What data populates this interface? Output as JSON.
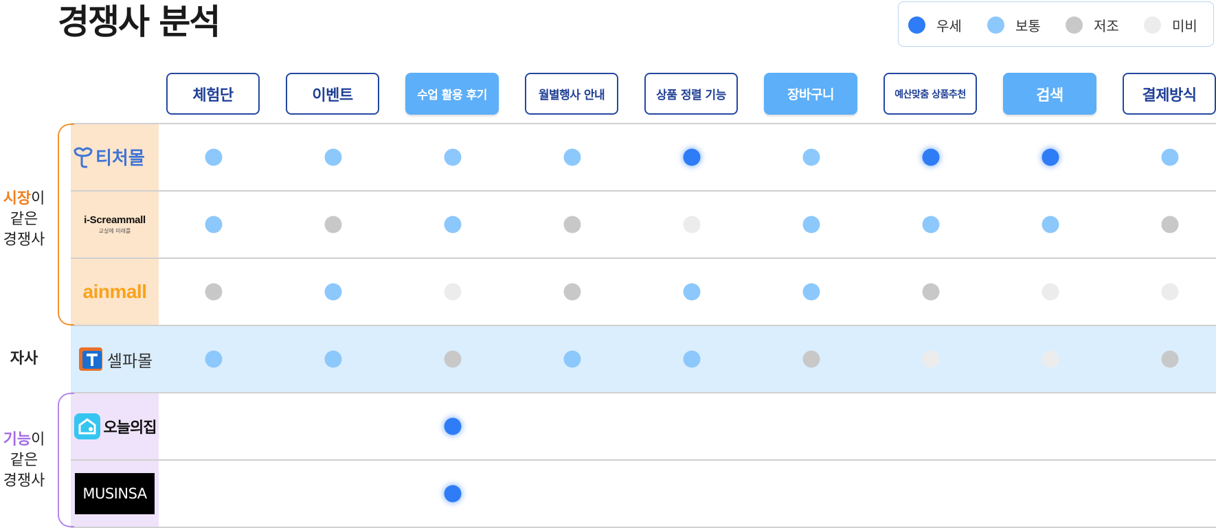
{
  "title": "경쟁사 분석",
  "legend": [
    {
      "label": "우세",
      "color": "#2e7cf6"
    },
    {
      "label": "보통",
      "color": "#8cc8fb"
    },
    {
      "label": "저조",
      "color": "#c8c8c8"
    },
    {
      "label": "미비",
      "color": "#ececec"
    }
  ],
  "columns": [
    {
      "label": "체험단",
      "style": "outline"
    },
    {
      "label": "이벤트",
      "style": "outline"
    },
    {
      "label": "수업 활용 후기",
      "style": "filled"
    },
    {
      "label": "월별행사 안내",
      "style": "outline"
    },
    {
      "label": "상품 정렬 기능",
      "style": "outline"
    },
    {
      "label": "장바구니",
      "style": "filled"
    },
    {
      "label": "예산맞춤 상품추천",
      "style": "outline"
    },
    {
      "label": "검색",
      "style": "filled"
    },
    {
      "label": "결제방식",
      "style": "outline"
    }
  ],
  "groups": {
    "market": {
      "accent": "시장",
      "rest": "이",
      "line2": "같은",
      "line3": "경쟁사"
    },
    "own": {
      "label": "자사"
    },
    "feature": {
      "accent": "기능",
      "rest": "이",
      "line2": "같은",
      "line3": "경쟁사"
    }
  },
  "rows": [
    {
      "name": "티처몰",
      "levels": [
        1,
        1,
        1,
        1,
        0,
        1,
        0,
        0,
        1
      ]
    },
    {
      "name": "i-Screammall",
      "tagline": "교실에 미래를",
      "levels": [
        1,
        2,
        1,
        2,
        3,
        1,
        1,
        1,
        2
      ]
    },
    {
      "name": "ainmall",
      "levels": [
        2,
        1,
        3,
        2,
        1,
        1,
        2,
        3,
        3
      ]
    },
    {
      "name": "셀파몰",
      "levels": [
        1,
        1,
        2,
        1,
        1,
        2,
        3,
        3,
        2
      ]
    },
    {
      "name": "오늘의집",
      "levels": [
        null,
        null,
        0,
        null,
        null,
        null,
        null,
        null,
        null
      ]
    },
    {
      "name": "MUSINSA",
      "levels": [
        null,
        null,
        0,
        null,
        null,
        null,
        null,
        null,
        null
      ]
    }
  ]
}
